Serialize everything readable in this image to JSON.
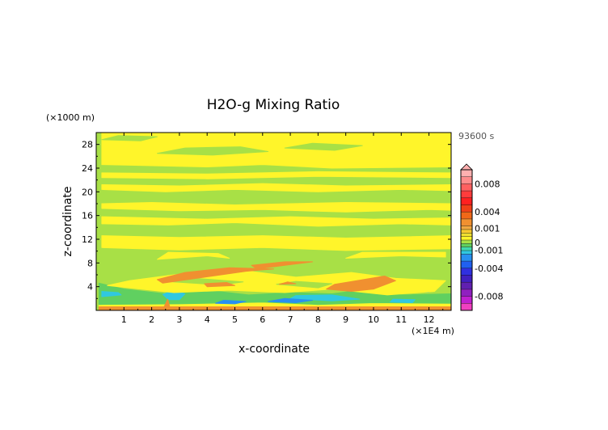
{
  "chart_data": {
    "type": "heatmap",
    "title": "H2O-g Mixing Ratio",
    "time_label": "93600 s",
    "xlabel": "x-coordinate",
    "ylabel": "z-coordinate",
    "x_unit": "(×1E4 m)",
    "y_unit": "(×1000 m)",
    "xlim": [
      0,
      12.8
    ],
    "ylim": [
      0,
      30
    ],
    "x_ticks": [
      "1",
      "2",
      "3",
      "4",
      "5",
      "6",
      "7",
      "8",
      "9",
      "10",
      "11",
      "12"
    ],
    "y_ticks": [
      "4",
      "8",
      "12",
      "16",
      "20",
      "24",
      "28"
    ],
    "colorbar": {
      "ticks": [
        "0.008",
        "0.004",
        "0.001",
        "0",
        "-0.001",
        "-0.004",
        "-0.008"
      ],
      "levels": [
        {
          "from": 0.009,
          "to": 0.01,
          "color": "#ffb0b0"
        },
        {
          "from": 0.008,
          "to": 0.009,
          "color": "#ff8c8c"
        },
        {
          "from": 0.007,
          "to": 0.008,
          "color": "#ff6060"
        },
        {
          "from": 0.006,
          "to": 0.007,
          "color": "#ff3c3c"
        },
        {
          "from": 0.005,
          "to": 0.006,
          "color": "#ff2020"
        },
        {
          "from": 0.004,
          "to": 0.005,
          "color": "#f04018"
        },
        {
          "from": 0.003,
          "to": 0.004,
          "color": "#f06818"
        },
        {
          "from": 0.002,
          "to": 0.003,
          "color": "#f09030"
        },
        {
          "from": 0.0015,
          "to": 0.002,
          "color": "#f0a840"
        },
        {
          "from": 0.001,
          "to": 0.0015,
          "color": "#f8c830"
        },
        {
          "from": 0.0005,
          "to": 0.001,
          "color": "#f0e030"
        },
        {
          "from": 0.0,
          "to": 0.0005,
          "color": "#fff52a"
        },
        {
          "from": -0.0005,
          "to": 0.0,
          "color": "#a8e046"
        },
        {
          "from": -0.001,
          "to": -0.0005,
          "color": "#60d060"
        },
        {
          "from": -0.0015,
          "to": -0.001,
          "color": "#40d8b0"
        },
        {
          "from": -0.002,
          "to": -0.0015,
          "color": "#30c8e0"
        },
        {
          "from": -0.003,
          "to": -0.002,
          "color": "#2890f0"
        },
        {
          "from": -0.004,
          "to": -0.003,
          "color": "#2060f0"
        },
        {
          "from": -0.005,
          "to": -0.004,
          "color": "#3030e0"
        },
        {
          "from": -0.006,
          "to": -0.005,
          "color": "#4020c0"
        },
        {
          "from": -0.007,
          "to": -0.006,
          "color": "#6020b0"
        },
        {
          "from": -0.008,
          "to": -0.007,
          "color": "#9020c0"
        },
        {
          "from": -0.009,
          "to": -0.008,
          "color": "#c020d0"
        },
        {
          "from": -0.01,
          "to": -0.009,
          "color": "#f040c0"
        }
      ]
    },
    "background_color": "#a8e046",
    "regions": [
      {
        "value": 0.0003,
        "polygon": [
          [
            0.1,
            0.6
          ],
          [
            12.8,
            0.6
          ],
          [
            12.8,
            1.2
          ],
          [
            10,
            1.3
          ],
          [
            8,
            1.0
          ],
          [
            6,
            1.4
          ],
          [
            3,
            1.1
          ],
          [
            0.1,
            1.0
          ]
        ]
      },
      {
        "value": -0.0008,
        "polygon": [
          [
            0.1,
            1.0
          ],
          [
            3,
            1.1
          ],
          [
            6,
            1.4
          ],
          [
            8,
            1.0
          ],
          [
            10,
            1.3
          ],
          [
            12.8,
            1.2
          ],
          [
            12.8,
            2.8
          ],
          [
            11,
            2.6
          ],
          [
            9.5,
            3.4
          ],
          [
            8.5,
            2.8
          ],
          [
            7,
            3.0
          ],
          [
            5.5,
            2.6
          ],
          [
            4,
            3.4
          ],
          [
            2.5,
            2.8
          ],
          [
            1.0,
            3.6
          ],
          [
            0.1,
            4.6
          ]
        ]
      },
      {
        "value": -0.0018,
        "polygon": [
          [
            0.2,
            2.3
          ],
          [
            0.9,
            2.6
          ],
          [
            0.8,
            3.0
          ],
          [
            0.2,
            3.2
          ]
        ]
      },
      {
        "value": -0.0018,
        "polygon": [
          [
            2.8,
            3.4
          ],
          [
            3.2,
            2.8
          ],
          [
            3.0,
            1.8
          ],
          [
            2.6,
            1.8
          ],
          [
            2.4,
            2.7
          ]
        ]
      },
      {
        "value": -0.0018,
        "polygon": [
          [
            7.0,
            2.0
          ],
          [
            8.5,
            1.6
          ],
          [
            9.5,
            1.9
          ],
          [
            8.5,
            2.6
          ],
          [
            7.2,
            2.5
          ]
        ]
      },
      {
        "value": -0.0018,
        "polygon": [
          [
            11.2,
            3.0
          ],
          [
            12.0,
            3.1
          ],
          [
            11.8,
            3.6
          ],
          [
            11.1,
            3.5
          ]
        ]
      },
      {
        "value": -0.0018,
        "polygon": [
          [
            10.6,
            1.4
          ],
          [
            11.4,
            1.3
          ],
          [
            11.5,
            1.8
          ],
          [
            10.7,
            1.9
          ]
        ]
      },
      {
        "value": -0.0025,
        "polygon": [
          [
            4.3,
            1.2
          ],
          [
            5.0,
            1.1
          ],
          [
            5.4,
            1.5
          ],
          [
            4.6,
            1.7
          ]
        ]
      },
      {
        "value": -0.0025,
        "polygon": [
          [
            6.2,
            1.5
          ],
          [
            7.2,
            1.3
          ],
          [
            7.8,
            1.7
          ],
          [
            6.8,
            2.0
          ]
        ]
      },
      {
        "value": 0.0003,
        "polygon": [
          [
            0.4,
            4.2
          ],
          [
            2.8,
            3.0
          ],
          [
            4.8,
            3.4
          ],
          [
            6.8,
            3.0
          ],
          [
            8.5,
            3.6
          ],
          [
            10.5,
            2.6
          ],
          [
            12.2,
            3.2
          ],
          [
            12.6,
            5.0
          ],
          [
            10.8,
            5.4
          ],
          [
            9.2,
            6.4
          ],
          [
            7.2,
            5.6
          ],
          [
            5.2,
            6.8
          ],
          [
            2.8,
            6.0
          ],
          [
            1.2,
            5.0
          ]
        ]
      },
      {
        "value": -0.0003,
        "polygon": [
          [
            2.5,
            4.9
          ],
          [
            4.5,
            4.3
          ],
          [
            5.3,
            4.8
          ],
          [
            3.6,
            5.4
          ]
        ]
      },
      {
        "value": -0.0003,
        "polygon": [
          [
            6.5,
            4.4
          ],
          [
            8.0,
            3.8
          ],
          [
            8.5,
            4.5
          ],
          [
            7.2,
            4.9
          ]
        ]
      },
      {
        "value": 0.0025,
        "polygon": [
          [
            2.4,
            4.6
          ],
          [
            4.2,
            5.8
          ],
          [
            5.4,
            6.6
          ],
          [
            6.4,
            7.0
          ],
          [
            4.8,
            7.2
          ],
          [
            3.2,
            6.4
          ],
          [
            2.2,
            5.2
          ]
        ]
      },
      {
        "value": 0.0025,
        "polygon": [
          [
            5.8,
            7.0
          ],
          [
            6.8,
            7.6
          ],
          [
            7.8,
            8.2
          ],
          [
            6.8,
            8.2
          ],
          [
            5.6,
            7.6
          ]
        ]
      },
      {
        "value": 0.0025,
        "polygon": [
          [
            8.3,
            3.6
          ],
          [
            9.2,
            3.2
          ],
          [
            10.0,
            3.6
          ],
          [
            10.8,
            5.0
          ],
          [
            10.4,
            5.8
          ],
          [
            9.4,
            5.0
          ],
          [
            8.6,
            4.4
          ]
        ]
      },
      {
        "value": 0.0025,
        "polygon": [
          [
            4.0,
            4.0
          ],
          [
            5.0,
            4.2
          ],
          [
            4.7,
            4.7
          ],
          [
            3.9,
            4.5
          ]
        ]
      },
      {
        "value": 0.0025,
        "polygon": [
          [
            6.6,
            4.4
          ],
          [
            7.2,
            4.5
          ],
          [
            6.9,
            4.8
          ]
        ]
      },
      {
        "value": 0.0003,
        "polygon": [
          [
            0.2,
            10.6
          ],
          [
            3,
            10.2
          ],
          [
            6,
            10.6
          ],
          [
            9,
            10.1
          ],
          [
            12.8,
            10.4
          ],
          [
            12.8,
            12.6
          ],
          [
            9,
            12.2
          ],
          [
            6,
            12.6
          ],
          [
            3,
            12.3
          ],
          [
            0.2,
            12.6
          ]
        ]
      },
      {
        "value": 0.0003,
        "polygon": [
          [
            2.2,
            8.6
          ],
          [
            4,
            9.2
          ],
          [
            4.8,
            8.8
          ],
          [
            4.4,
            9.6
          ],
          [
            2.6,
            9.8
          ]
        ]
      },
      {
        "value": 0.0003,
        "polygon": [
          [
            9.0,
            8.8
          ],
          [
            11,
            9.2
          ],
          [
            12.6,
            9.0
          ],
          [
            12.6,
            9.8
          ],
          [
            9.6,
            9.8
          ]
        ]
      },
      {
        "value": 0.0003,
        "polygon": [
          [
            0.2,
            14.6
          ],
          [
            2.6,
            14.4
          ],
          [
            5,
            14.8
          ],
          [
            8,
            14.2
          ],
          [
            11,
            14.6
          ],
          [
            12.8,
            14.4
          ],
          [
            12.8,
            15.6
          ],
          [
            10,
            15.4
          ],
          [
            7,
            15.8
          ],
          [
            4,
            15.4
          ],
          [
            0.2,
            15.8
          ]
        ]
      },
      {
        "value": 0.0003,
        "polygon": [
          [
            0.2,
            17.2
          ],
          [
            3,
            16.8
          ],
          [
            6,
            17.0
          ],
          [
            9,
            16.6
          ],
          [
            12,
            17.0
          ],
          [
            12.8,
            16.9
          ],
          [
            12.8,
            18.0
          ],
          [
            9,
            18.2
          ],
          [
            5,
            17.8
          ],
          [
            2,
            18.2
          ],
          [
            0.2,
            18.0
          ]
        ]
      },
      {
        "value": 0.0003,
        "polygon": [
          [
            0.2,
            20.4
          ],
          [
            2.5,
            20.0
          ],
          [
            5,
            20.4
          ],
          [
            8,
            20.0
          ],
          [
            11,
            20.4
          ],
          [
            12.8,
            20.2
          ],
          [
            12.8,
            21.2
          ],
          [
            9,
            21.0
          ],
          [
            6,
            21.4
          ],
          [
            3,
            21.0
          ],
          [
            0.2,
            21.2
          ]
        ]
      },
      {
        "value": 0.0003,
        "polygon": [
          [
            0.2,
            22.4
          ],
          [
            4,
            22.2
          ],
          [
            8,
            22.6
          ],
          [
            12.8,
            22.4
          ],
          [
            12.8,
            23.2
          ],
          [
            8,
            23.4
          ],
          [
            4,
            23.0
          ],
          [
            0.2,
            23.2
          ]
        ]
      },
      {
        "value": 0.0003,
        "polygon": [
          [
            0.2,
            24.6
          ],
          [
            4,
            24.2
          ],
          [
            6,
            24.6
          ],
          [
            8.5,
            24.0
          ],
          [
            12.8,
            24.2
          ],
          [
            12.8,
            30
          ],
          [
            0.2,
            30
          ]
        ]
      },
      {
        "value": -0.0003,
        "polygon": [
          [
            2.2,
            26.5
          ],
          [
            4.2,
            26.2
          ],
          [
            6.2,
            26.8
          ],
          [
            5.2,
            27.6
          ],
          [
            3.2,
            27.4
          ]
        ]
      },
      {
        "value": -0.0003,
        "polygon": [
          [
            6.8,
            27.4
          ],
          [
            8.6,
            27.0
          ],
          [
            9.6,
            27.8
          ],
          [
            7.8,
            28.2
          ]
        ]
      },
      {
        "value": -0.0003,
        "polygon": [
          [
            0.2,
            28.8
          ],
          [
            1.6,
            28.6
          ],
          [
            2.2,
            29.3
          ],
          [
            0.8,
            29.5
          ]
        ]
      },
      {
        "value": 0.0025,
        "polygon": [
          [
            0.1,
            0
          ],
          [
            12.8,
            0
          ],
          [
            12.8,
            0.6
          ],
          [
            0.1,
            0.6
          ]
        ]
      },
      {
        "value": 0.0025,
        "polygon": [
          [
            2.45,
            0.6
          ],
          [
            2.65,
            0.6
          ],
          [
            2.58,
            1.9
          ]
        ]
      }
    ]
  }
}
